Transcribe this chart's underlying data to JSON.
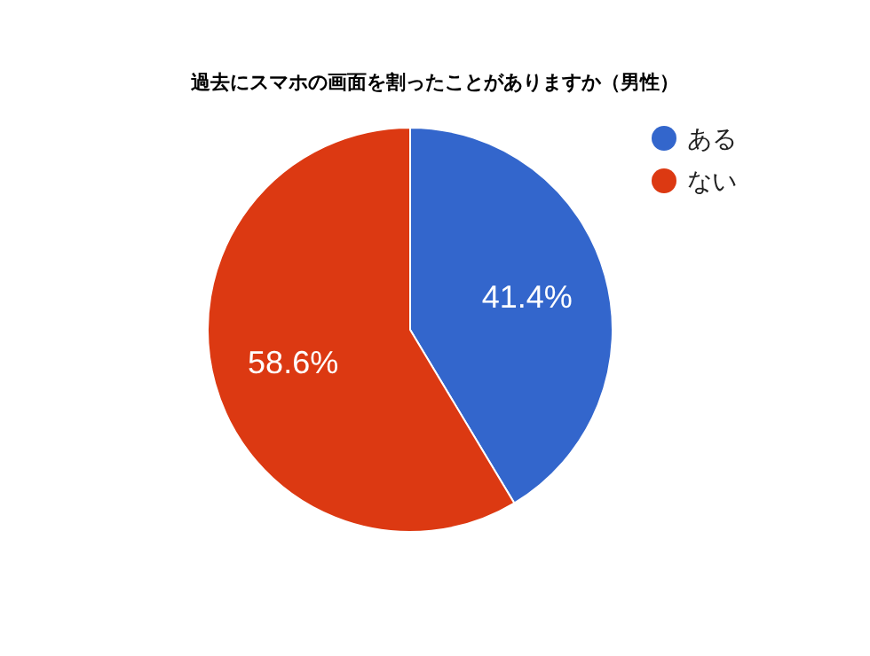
{
  "chart_data": {
    "type": "pie",
    "title": "過去にスマホの画面を割ったことがありますか（男性）",
    "categories": [
      "ある",
      "ない"
    ],
    "values": [
      41.4,
      58.6
    ],
    "colors": [
      "#3366cc",
      "#dc3912"
    ],
    "value_labels": [
      "41.4%",
      "58.6%"
    ],
    "legend": "top right"
  }
}
